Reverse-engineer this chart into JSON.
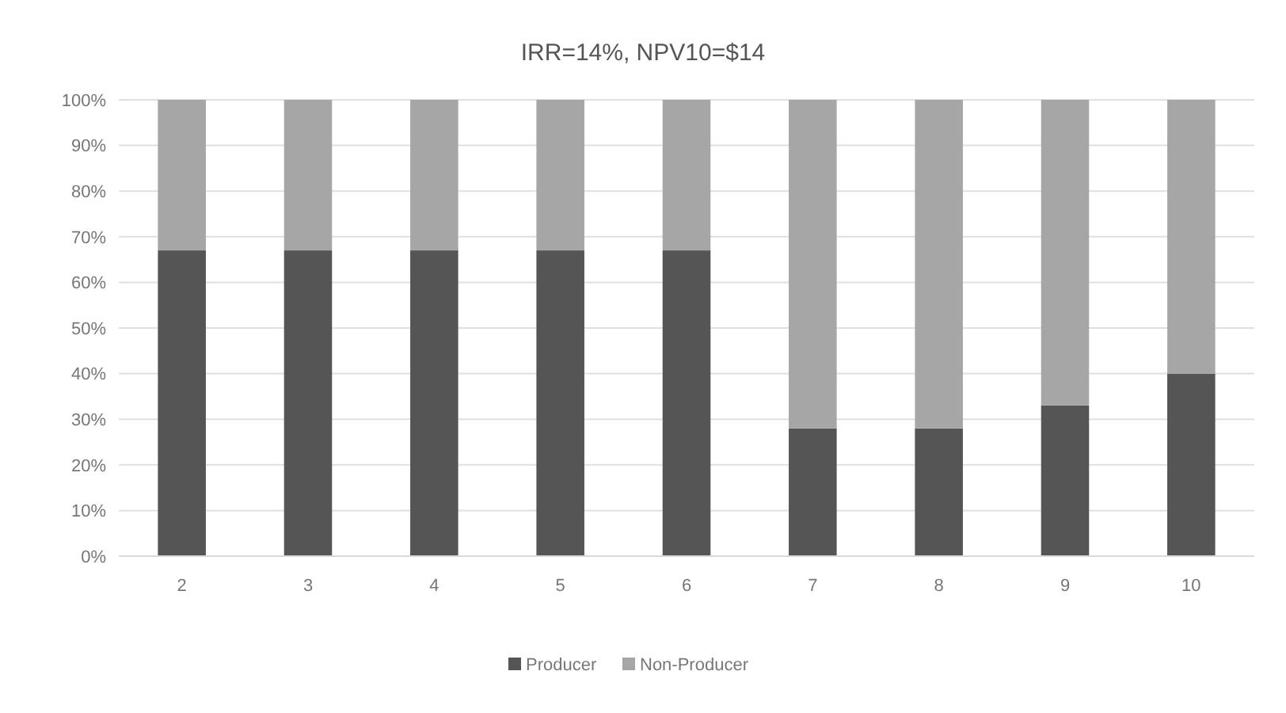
{
  "chart_data": {
    "type": "bar",
    "title": "IRR=14%, NPV10=$14",
    "stacked": true,
    "categories": [
      "2",
      "3",
      "4",
      "5",
      "6",
      "7",
      "8",
      "9",
      "10"
    ],
    "series": [
      {
        "name": "Producer",
        "color": "#555555",
        "values": [
          67,
          67,
          67,
          67,
          67,
          28,
          28,
          33,
          40
        ]
      },
      {
        "name": "Non-Producer",
        "color": "#a6a6a6",
        "values": [
          33,
          33,
          33,
          33,
          33,
          72,
          72,
          67,
          60
        ]
      }
    ],
    "ylim": [
      0,
      100
    ],
    "yticks": [
      {
        "value": 0,
        "label": "0%"
      },
      {
        "value": 10,
        "label": "10%"
      },
      {
        "value": 20,
        "label": "20%"
      },
      {
        "value": 30,
        "label": "30%"
      },
      {
        "value": 40,
        "label": "40%"
      },
      {
        "value": 50,
        "label": "50%"
      },
      {
        "value": 60,
        "label": "60%"
      },
      {
        "value": 70,
        "label": "70%"
      },
      {
        "value": 80,
        "label": "80%"
      },
      {
        "value": 90,
        "label": "90%"
      },
      {
        "value": 100,
        "label": "100%"
      }
    ],
    "grid": "y",
    "legend": "bottom"
  }
}
